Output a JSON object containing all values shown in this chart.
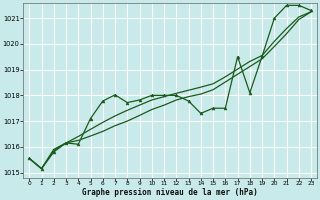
{
  "xlabel": "Graphe pression niveau de la mer (hPa)",
  "background_color": "#c8eaea",
  "grid_color": "#ffffff",
  "line_color": "#1a5c1a",
  "ylim": [
    1014.8,
    1021.6
  ],
  "xlim": [
    -0.5,
    23.5
  ],
  "yticks": [
    1015,
    1016,
    1017,
    1018,
    1019,
    1020,
    1021
  ],
  "xticks": [
    0,
    1,
    2,
    3,
    4,
    5,
    6,
    7,
    8,
    9,
    10,
    11,
    12,
    13,
    14,
    15,
    16,
    17,
    18,
    19,
    20,
    21,
    22,
    23
  ],
  "series1_x": [
    0,
    1,
    2,
    3,
    4,
    5,
    6,
    7,
    8,
    9,
    10,
    11,
    12,
    13,
    14,
    15,
    16,
    17,
    18,
    19,
    20,
    21,
    22,
    23
  ],
  "series1_y": [
    1015.55,
    1015.15,
    1015.8,
    1016.15,
    1016.1,
    1017.1,
    1017.78,
    1018.02,
    1017.72,
    1017.82,
    1018.0,
    1018.0,
    1018.0,
    1017.78,
    1017.3,
    1017.5,
    1017.5,
    1019.5,
    1018.1,
    1019.52,
    1021.0,
    1021.5,
    1021.5,
    1021.3
  ],
  "series2_x": [
    0,
    1,
    2,
    3,
    4,
    5,
    6,
    7,
    8,
    9,
    10,
    11,
    12,
    13,
    14,
    15,
    16,
    17,
    18,
    19,
    20,
    21,
    22,
    23
  ],
  "series2_y": [
    1015.55,
    1015.15,
    1015.85,
    1016.15,
    1016.25,
    1016.42,
    1016.6,
    1016.82,
    1017.0,
    1017.22,
    1017.45,
    1017.62,
    1017.82,
    1017.95,
    1018.05,
    1018.22,
    1018.52,
    1018.82,
    1019.12,
    1019.42,
    1019.9,
    1020.4,
    1020.95,
    1021.25
  ],
  "series3_x": [
    0,
    1,
    2,
    3,
    4,
    5,
    6,
    7,
    8,
    9,
    10,
    11,
    12,
    13,
    14,
    15,
    16,
    17,
    18,
    19,
    20,
    21,
    22,
    23
  ],
  "series3_y": [
    1015.55,
    1015.15,
    1015.9,
    1016.15,
    1016.4,
    1016.68,
    1016.95,
    1017.2,
    1017.42,
    1017.62,
    1017.82,
    1017.95,
    1018.08,
    1018.2,
    1018.32,
    1018.45,
    1018.72,
    1019.02,
    1019.32,
    1019.55,
    1020.1,
    1020.6,
    1021.05,
    1021.25
  ]
}
